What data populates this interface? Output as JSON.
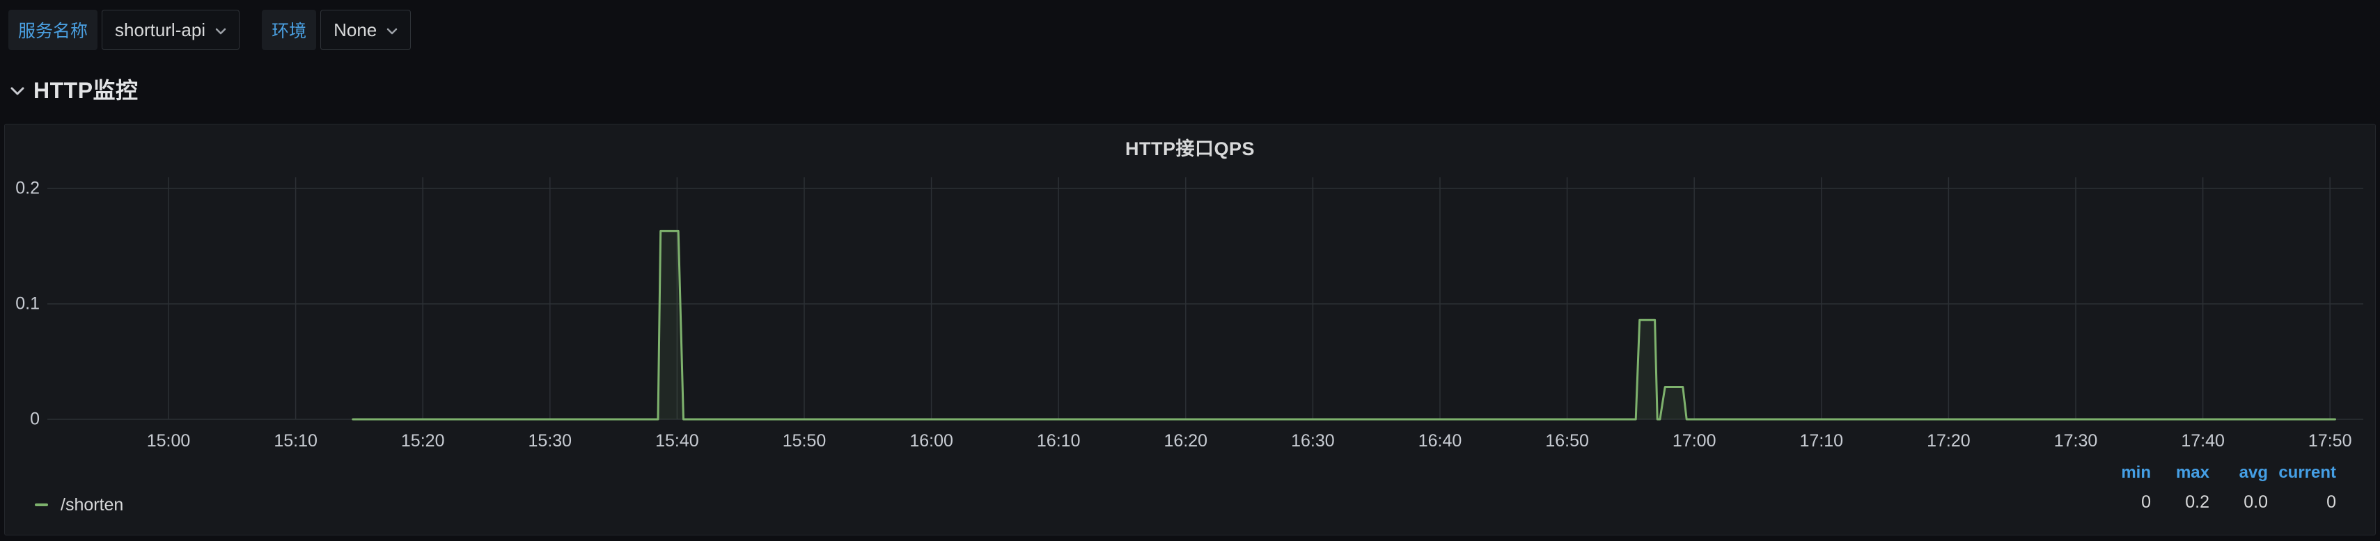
{
  "topbar": {
    "service_label": "服务名称",
    "service_value": "shorturl-api",
    "env_label": "环境",
    "env_value": "None"
  },
  "section": {
    "title": "HTTP监控"
  },
  "panel": {
    "title": "HTTP接口QPS"
  },
  "colors": {
    "accent_blue": "#459fe5",
    "label_blue": "#4a9fe0",
    "series_green": "#7EB26D",
    "grid": "#2c3035",
    "panel_bg": "#16181c",
    "page_bg": "#0d0e12",
    "axis_text": "#c8ccd3"
  },
  "chart_data": {
    "type": "line",
    "title": "HTTP接口QPS",
    "x_axis": {
      "unit": "time",
      "start": "15:00",
      "end": "17:50",
      "tick_interval_minutes": 10,
      "tick_labels": [
        "15:00",
        "15:10",
        "15:20",
        "15:30",
        "15:40",
        "15:50",
        "16:00",
        "16:10",
        "16:20",
        "16:30",
        "16:40",
        "16:50",
        "17:00",
        "17:10",
        "17:20",
        "17:30",
        "17:40",
        "17:50"
      ]
    },
    "y_axis": {
      "min": 0,
      "max": 0.2,
      "tick_values": [
        0,
        0.1,
        0.2
      ],
      "tick_labels": [
        "0",
        "0.1",
        "0.2"
      ]
    },
    "grid": true,
    "legend_position": "bottom-left",
    "series": [
      {
        "name": "/shorten",
        "color": "#7EB26D",
        "fill_opacity": 0.1,
        "points_minutes_value": [
          [
            14.5,
            0
          ],
          [
            38.5,
            0
          ],
          [
            38.7,
            0.163
          ],
          [
            40.1,
            0.163
          ],
          [
            40.5,
            0
          ],
          [
            115.4,
            0
          ],
          [
            115.7,
            0.086
          ],
          [
            116.9,
            0.086
          ],
          [
            117.1,
            0
          ],
          [
            117.3,
            0
          ],
          [
            117.7,
            0.028
          ],
          [
            119.1,
            0.028
          ],
          [
            119.4,
            0
          ],
          [
            170.4,
            0
          ]
        ]
      }
    ],
    "legend_stats": {
      "headers": [
        "min",
        "max",
        "avg",
        "current"
      ],
      "rows": [
        {
          "series": "/shorten",
          "values": [
            "0",
            "0.2",
            "0.0",
            "0"
          ]
        }
      ]
    }
  }
}
